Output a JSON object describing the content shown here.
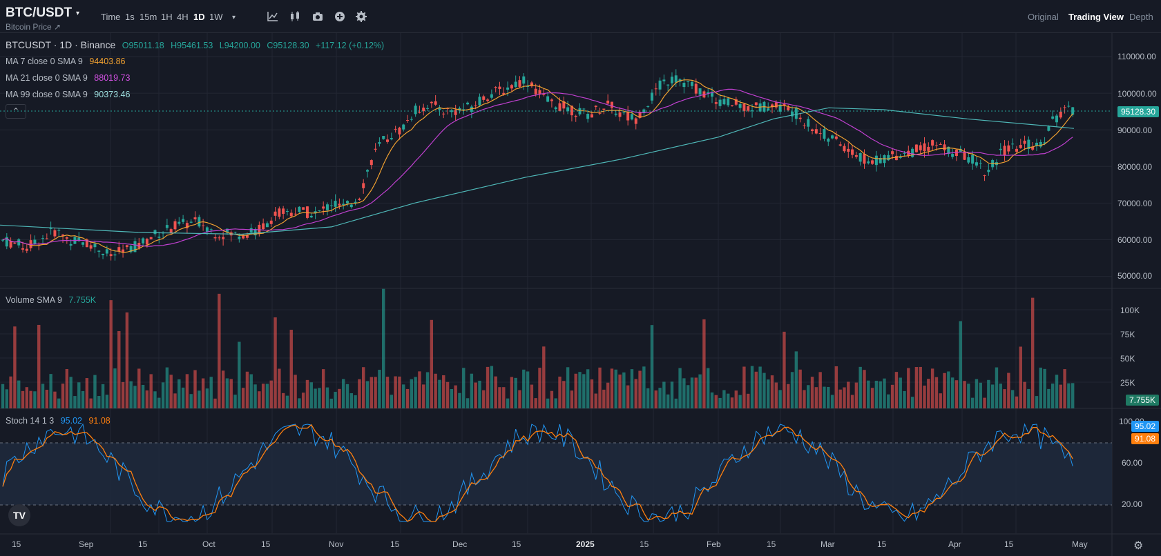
{
  "header": {
    "symbol": "BTC/USDT",
    "caret": "▾",
    "subtitle": "Bitcoin Price ↗",
    "timeframes": [
      "Time",
      "1s",
      "15m",
      "1H",
      "4H",
      "1D",
      "1W"
    ],
    "active_timeframe": "1D",
    "more": "▾",
    "icons": [
      "indicators-icon",
      "candle-type-icon",
      "camera-icon",
      "add-icon",
      "settings-icon"
    ],
    "views": [
      "Original",
      "Trading View",
      "Depth"
    ],
    "active_view": "Trading View"
  },
  "legend": {
    "pair": "BTCUSDT · 1D · Binance",
    "open": "O95011.18",
    "high": "H95461.53",
    "low": "L94200.00",
    "close": "C95128.30",
    "change": "+117.12 (+0.12%)",
    "ma7_label": "MA 7 close 0 SMA 9",
    "ma7_value": "94403.86",
    "ma21_label": "MA 21 close 0 SMA 9",
    "ma21_value": "88019.73",
    "ma99_label": "MA 99 close 0 SMA 9",
    "ma99_value": "90373.46",
    "collapse": "⌃",
    "volume_label": "Volume SMA 9",
    "volume_value": "7.755K",
    "stoch_label": "Stoch 14 1 3",
    "stoch_k": "95.02",
    "stoch_d": "91.08"
  },
  "price_axis": {
    "labels": [
      "110000.00",
      "100000.00",
      "90000.00",
      "80000.00",
      "70000.00",
      "60000.00",
      "50000.00"
    ],
    "last_price": "95128.30"
  },
  "volume_axis": {
    "labels": [
      "100K",
      "75K",
      "50K",
      "25K"
    ],
    "last_volume": "7.755K"
  },
  "stoch_axis": {
    "labels": [
      "100.00",
      "60.00",
      "20.00"
    ],
    "k_value": "95.02",
    "d_value": "91.08"
  },
  "time_axis": [
    "15",
    "Sep",
    "15",
    "Oct",
    "15",
    "Nov",
    "15",
    "Dec",
    "15",
    "2025",
    "15",
    "Feb",
    "15",
    "Mar",
    "15",
    "Apr",
    "15",
    "May"
  ],
  "colors": {
    "up": "#26a69a",
    "down": "#ef5350",
    "ma7": "#f0a030",
    "ma21": "#c040d0",
    "ma99": "#4fb8b8",
    "stoch_k": "#2196f3",
    "stoch_d": "#ff7f0e",
    "background": "#161a25"
  },
  "chart_data": {
    "type": "candlestick",
    "title": "BTCUSDT · 1D · Binance",
    "x": [
      "Aug 15",
      "Sep 1",
      "Sep 15",
      "Oct 1",
      "Oct 15",
      "Nov 1",
      "Nov 15",
      "Dec 1",
      "Dec 15",
      "Jan 1",
      "Jan 15",
      "Feb 1",
      "Feb 15",
      "Mar 1",
      "Mar 15",
      "Apr 1",
      "Apr 15",
      "Apr 28"
    ],
    "series": [
      {
        "name": "Close",
        "values": [
          59000,
          59000,
          58000,
          61000,
          66000,
          70000,
          90000,
          97000,
          104000,
          94000,
          99000,
          101000,
          96000,
          86000,
          84000,
          83000,
          85000,
          95128
        ]
      },
      {
        "name": "MA 99",
        "values": [
          64000,
          63000,
          62000,
          61500,
          62000,
          64000,
          71000,
          77000,
          82000,
          87000,
          91000,
          95000,
          97500,
          96000,
          94000,
          92500,
          91000,
          90373
        ]
      }
    ],
    "ylim": [
      47000,
      113000
    ],
    "volume_axis_max": 100000,
    "stoch_levels": [
      20,
      80
    ]
  }
}
